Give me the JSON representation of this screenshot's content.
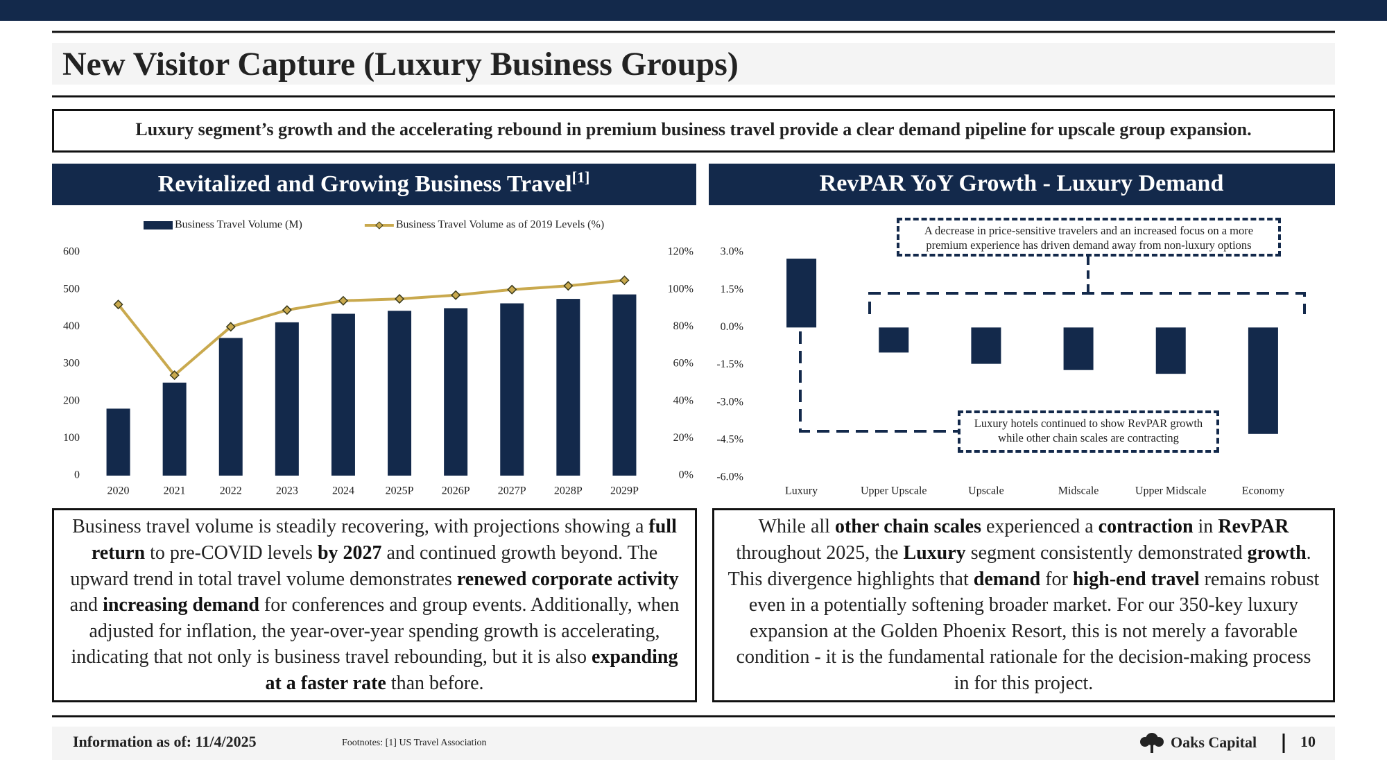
{
  "header": {
    "title": "New Visitor Capture (Luxury Business Groups)"
  },
  "callout": "Luxury segment’s growth and the accelerating rebound in premium business travel provide a clear demand pipeline for upscale group expansion.",
  "chart_data": [
    {
      "type": "bar",
      "title": "Revitalized and Growing Business Travel",
      "title_note": "[1]",
      "categories": [
        "2020",
        "2021",
        "2022",
        "2023",
        "2024",
        "2025P",
        "2026P",
        "2027P",
        "2028P",
        "2029P"
      ],
      "series": [
        {
          "name": "Business Travel Volume (M)",
          "type": "bar",
          "color": "#13294b",
          "values": [
            180,
            250,
            370,
            412,
            435,
            443,
            450,
            463,
            475,
            487
          ]
        },
        {
          "name": "Business Travel Volume as of 2019 Levels (%)",
          "type": "line",
          "axis": "y2",
          "color": "#c9a94e",
          "values": [
            92,
            54,
            80,
            89,
            94,
            95,
            97,
            100,
            102,
            105
          ]
        }
      ],
      "ylim": [
        0,
        600
      ],
      "yticks": [
        0,
        100,
        200,
        300,
        400,
        500,
        600
      ],
      "y2lim": [
        0,
        120
      ],
      "y2ticks": [
        {
          "value": 0,
          "label": "0%"
        },
        {
          "value": 20,
          "label": "20%"
        },
        {
          "value": 40,
          "label": "40%"
        },
        {
          "value": 60,
          "label": "60%"
        },
        {
          "value": 80,
          "label": "80%"
        },
        {
          "value": 100,
          "label": "100%"
        },
        {
          "value": 120,
          "label": "120%"
        }
      ],
      "grid": false,
      "legend": "top"
    },
    {
      "type": "bar",
      "title": "RevPAR YoY Growth - Luxury Demand",
      "categories": [
        "Luxury",
        "Upper Upscale",
        "Upscale",
        "Midscale",
        "Upper Midscale",
        "Economy"
      ],
      "values": [
        2.75,
        -1.0,
        -1.45,
        -1.7,
        -1.85,
        -4.25
      ],
      "color": "#13294b",
      "ylim": [
        -6,
        3
      ],
      "yticks": [
        {
          "value": 3,
          "label": "3.0%"
        },
        {
          "value": 1.5,
          "label": "1.5%"
        },
        {
          "value": 0,
          "label": "0.0%"
        },
        {
          "value": -1.5,
          "label": "-1.5%"
        },
        {
          "value": -3,
          "label": "-3.0%"
        },
        {
          "value": -4.5,
          "label": "-4.5%"
        },
        {
          "value": -6,
          "label": "-6.0%"
        }
      ],
      "grid": false,
      "annotations": [
        "A decrease in price-sensitive travelers and an increased focus on a more premium experience has driven demand away from non-luxury options",
        "Luxury hotels continued to show RevPAR growth while other chain scales are contracting"
      ]
    }
  ],
  "paragraphs": [
    [
      {
        "text": "Business travel volume is steadily recovering, with projections showing a ",
        "bold": false
      },
      {
        "text": "full return",
        "bold": true
      },
      {
        "text": " to pre-COVID levels ",
        "bold": false
      },
      {
        "text": "by 2027",
        "bold": true
      },
      {
        "text": " and continued growth beyond. The upward trend in total travel volume demonstrates ",
        "bold": false
      },
      {
        "text": "renewed corporate activity",
        "bold": true
      },
      {
        "text": " and ",
        "bold": false
      },
      {
        "text": "increasing demand",
        "bold": true
      },
      {
        "text": " for conferences and group events. Additionally, when adjusted for inflation, the year-over-year spending growth is accelerating, indicating that not only is business travel rebounding, but it is also ",
        "bold": false
      },
      {
        "text": "expanding at a faster rate",
        "bold": true
      },
      {
        "text": " than before.",
        "bold": false
      }
    ],
    [
      {
        "text": "While all ",
        "bold": false
      },
      {
        "text": "other chain scales",
        "bold": true
      },
      {
        "text": " experienced a ",
        "bold": false
      },
      {
        "text": "contraction",
        "bold": true
      },
      {
        "text": " in ",
        "bold": false
      },
      {
        "text": "RevPAR",
        "bold": true
      },
      {
        "text": " throughout 2025, the ",
        "bold": false
      },
      {
        "text": "Luxury",
        "bold": true
      },
      {
        "text": " segment consistently demonstrated ",
        "bold": false
      },
      {
        "text": "growth",
        "bold": true
      },
      {
        "text": ". This divergence highlights that ",
        "bold": false
      },
      {
        "text": "demand",
        "bold": true
      },
      {
        "text": " for ",
        "bold": false
      },
      {
        "text": "high-end travel",
        "bold": true
      },
      {
        "text": " remains robust even in a potentially softening broader market. For our 350-key luxury expansion at the Golden Phoenix Resort, this is not merely a favorable condition - it is the fundamental rationale for the decision-making process in for this project.",
        "bold": false
      }
    ]
  ],
  "footer": {
    "date": "Information as of: 11/4/2025",
    "footnote": "Footnotes: [1] US Travel Association",
    "brand": "Oaks Capital",
    "page": 10
  }
}
